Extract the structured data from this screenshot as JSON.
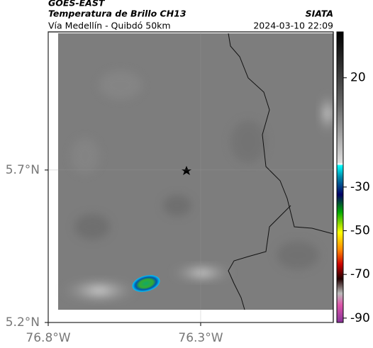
{
  "header": {
    "source": "GOES-EAST",
    "product": "Temperatura de Brillo CH13",
    "route": "Vía Medellín - Quibdó 50km",
    "org": "SIATA",
    "timestamp": "2024-03-10 22:09"
  },
  "map": {
    "xlim": [
      -76.8,
      -75.865
    ],
    "ylim": [
      5.2,
      6.153
    ],
    "xticks": [
      {
        "value": -76.8,
        "label": "76.8°W"
      },
      {
        "value": -76.3,
        "label": "76.3°W"
      }
    ],
    "yticks": [
      {
        "value": 5.7,
        "label": "5.7°N"
      },
      {
        "value": 5.2,
        "label": "5.2°N"
      }
    ],
    "colorbar": {
      "clim": [
        -92,
        41
      ],
      "ticks": [
        20,
        -30,
        -50,
        -70,
        -90
      ]
    }
  }
}
